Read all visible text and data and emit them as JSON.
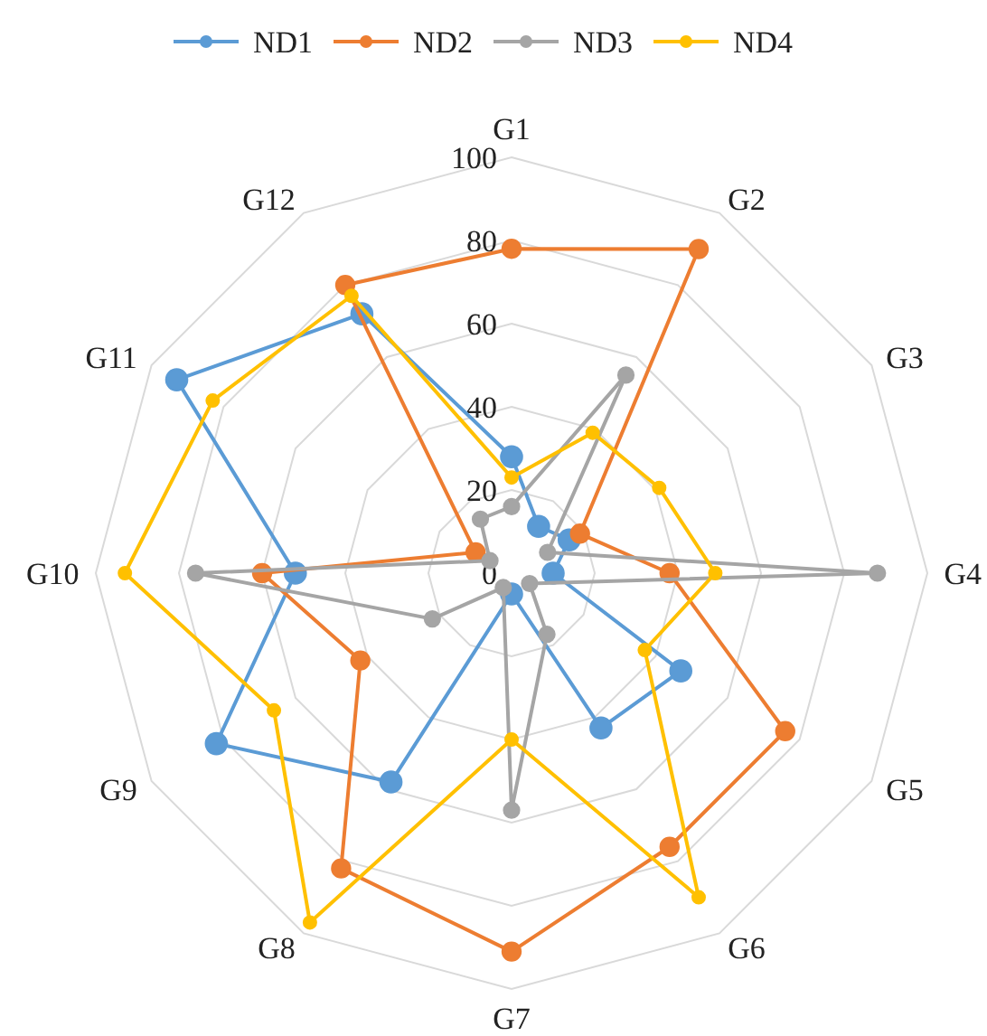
{
  "chart_data": {
    "type": "radar",
    "categories": [
      "G1",
      "G2",
      "G3",
      "G4",
      "G5",
      "G6",
      "G7",
      "G8",
      "G9",
      "G10",
      "G11",
      "G12"
    ],
    "ylim": [
      0,
      100
    ],
    "yticks": [
      0,
      20,
      40,
      60,
      80,
      100
    ],
    "grid": true,
    "legend": "top",
    "marker": "circle",
    "series": [
      {
        "name": "ND1",
        "color": "#5b9bd5",
        "values": [
          28,
          13,
          16,
          10,
          47,
          43,
          5,
          58,
          82,
          52,
          93,
          72
        ]
      },
      {
        "name": "ND2",
        "color": "#ed7d31",
        "values": [
          78,
          90,
          19,
          38,
          76,
          76,
          91,
          82,
          42,
          60,
          10,
          80
        ]
      },
      {
        "name": "ND3",
        "color": "#a5a5a5",
        "values": [
          16,
          55,
          10,
          88,
          5,
          17,
          57,
          4,
          22,
          76,
          6,
          15
        ]
      },
      {
        "name": "ND4",
        "color": "#ffc000",
        "values": [
          23,
          39,
          41,
          49,
          37,
          90,
          40,
          97,
          66,
          93,
          83,
          77
        ]
      }
    ]
  }
}
